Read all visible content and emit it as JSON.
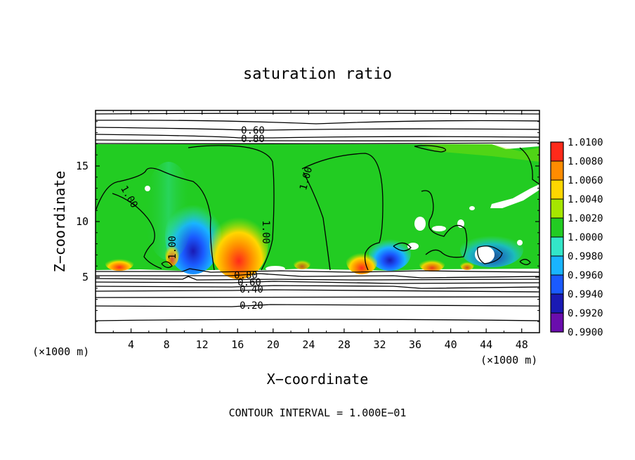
{
  "chart_data": {
    "type": "heatmap",
    "title": "saturation ratio",
    "xlabel": "X−coordinate",
    "ylabel": "Z−coordinate",
    "x_unit_left": "(×1000 m)",
    "x_unit_right": "(×1000 m)",
    "footer": "CONTOUR INTERVAL = 1.000E−01",
    "xlim": [
      0,
      50
    ],
    "ylim": [
      0,
      20
    ],
    "x_ticks": [
      4,
      8,
      12,
      16,
      20,
      24,
      28,
      32,
      36,
      40,
      44,
      48
    ],
    "y_ticks": [
      5,
      10,
      15
    ],
    "x_tick_labels": [
      "4",
      "8",
      "12",
      "16",
      "20",
      "24",
      "28",
      "32",
      "36",
      "40",
      "44",
      "48"
    ],
    "y_tick_labels": [
      "5",
      "10",
      "15"
    ],
    "colorbar": {
      "levels": [
        "0.9900",
        "0.9920",
        "0.9940",
        "0.9960",
        "0.9980",
        "1.0000",
        "1.0020",
        "1.0040",
        "1.0060",
        "1.0080",
        "1.0100"
      ],
      "colors": [
        "#6a0dad",
        "#1a1ab4",
        "#1a5aff",
        "#19b4ff",
        "#33e6c8",
        "#22cc22",
        "#a6e600",
        "#ffd700",
        "#ff8c00",
        "#ff2a1a",
        "#ff9aa8"
      ]
    },
    "cloud_layer": {
      "z_bottom": 5.8,
      "z_top": 17.0
    },
    "contours": [
      {
        "label": "0.60",
        "x": 17.6,
        "z": 18.6
      },
      {
        "label": "0.80",
        "x": 17.6,
        "z": 17.6
      },
      {
        "label": "0.80",
        "x": 17.0,
        "z": 5.2
      },
      {
        "label": "0.60",
        "x": 17.3,
        "z": 4.6
      },
      {
        "label": "0.40",
        "x": 17.6,
        "z": 3.9
      },
      {
        "label": "0.20",
        "x": 17.6,
        "z": 2.5
      },
      {
        "label": "1.00",
        "x": 3.6,
        "z": 12.2
      },
      {
        "label": "1.00",
        "x": 18.6,
        "z": 9.0
      },
      {
        "label": "1.00",
        "x": 23.8,
        "z": 14.0
      },
      {
        "label": "1.00",
        "x": 8.5,
        "z": 7.8
      }
    ]
  }
}
